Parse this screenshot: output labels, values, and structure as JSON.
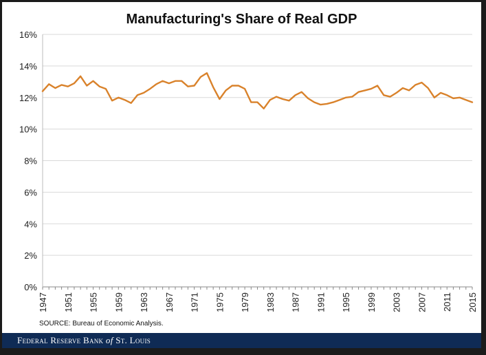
{
  "chart_data": {
    "type": "line",
    "title": "Manufacturing's Share of Real GDP",
    "xlabel": "",
    "ylabel": "",
    "xlim": [
      1947,
      2015
    ],
    "ylim": [
      0,
      16
    ],
    "yticks": [
      "0%",
      "2%",
      "4%",
      "6%",
      "8%",
      "10%",
      "12%",
      "14%",
      "16%"
    ],
    "xticks": [
      "1947",
      "1951",
      "1955",
      "1959",
      "1963",
      "1967",
      "1971",
      "1975",
      "1979",
      "1983",
      "1987",
      "1991",
      "1995",
      "1999",
      "2003",
      "2007",
      "2011",
      "2015"
    ],
    "grid": true,
    "line_color": "#d9822b",
    "x": [
      1947,
      1948,
      1949,
      1950,
      1951,
      1952,
      1953,
      1954,
      1955,
      1956,
      1957,
      1958,
      1959,
      1960,
      1961,
      1962,
      1963,
      1964,
      1965,
      1966,
      1967,
      1968,
      1969,
      1970,
      1971,
      1972,
      1973,
      1974,
      1975,
      1976,
      1977,
      1978,
      1979,
      1980,
      1981,
      1982,
      1983,
      1984,
      1985,
      1986,
      1987,
      1988,
      1989,
      1990,
      1991,
      1992,
      1993,
      1994,
      1995,
      1996,
      1997,
      1998,
      1999,
      2000,
      2001,
      2002,
      2003,
      2004,
      2005,
      2006,
      2007,
      2008,
      2009,
      2010,
      2011,
      2012,
      2013,
      2014,
      2015
    ],
    "y": [
      12.4,
      12.85,
      12.6,
      12.8,
      12.7,
      12.9,
      13.35,
      12.75,
      13.05,
      12.7,
      12.55,
      11.8,
      12.0,
      11.85,
      11.65,
      12.15,
      12.3,
      12.55,
      12.85,
      13.05,
      12.9,
      13.05,
      13.05,
      12.7,
      12.75,
      13.3,
      13.55,
      12.65,
      11.9,
      12.45,
      12.75,
      12.75,
      12.55,
      11.7,
      11.7,
      11.3,
      11.85,
      12.05,
      11.9,
      11.8,
      12.15,
      12.35,
      11.95,
      11.7,
      11.55,
      11.6,
      11.7,
      11.85,
      12.0,
      12.05,
      12.35,
      12.45,
      12.55,
      12.75,
      12.15,
      12.05,
      12.3,
      12.6,
      12.45,
      12.8,
      12.95,
      12.6,
      12.0,
      12.3,
      12.15,
      11.95,
      12.0,
      11.85,
      11.7
    ]
  },
  "source_note": "SOURCE: Bureau of Economic Analysis.",
  "footer": {
    "prefix": "Federal Reserve Bank",
    "of": "of",
    "suffix": "St. Louis"
  }
}
